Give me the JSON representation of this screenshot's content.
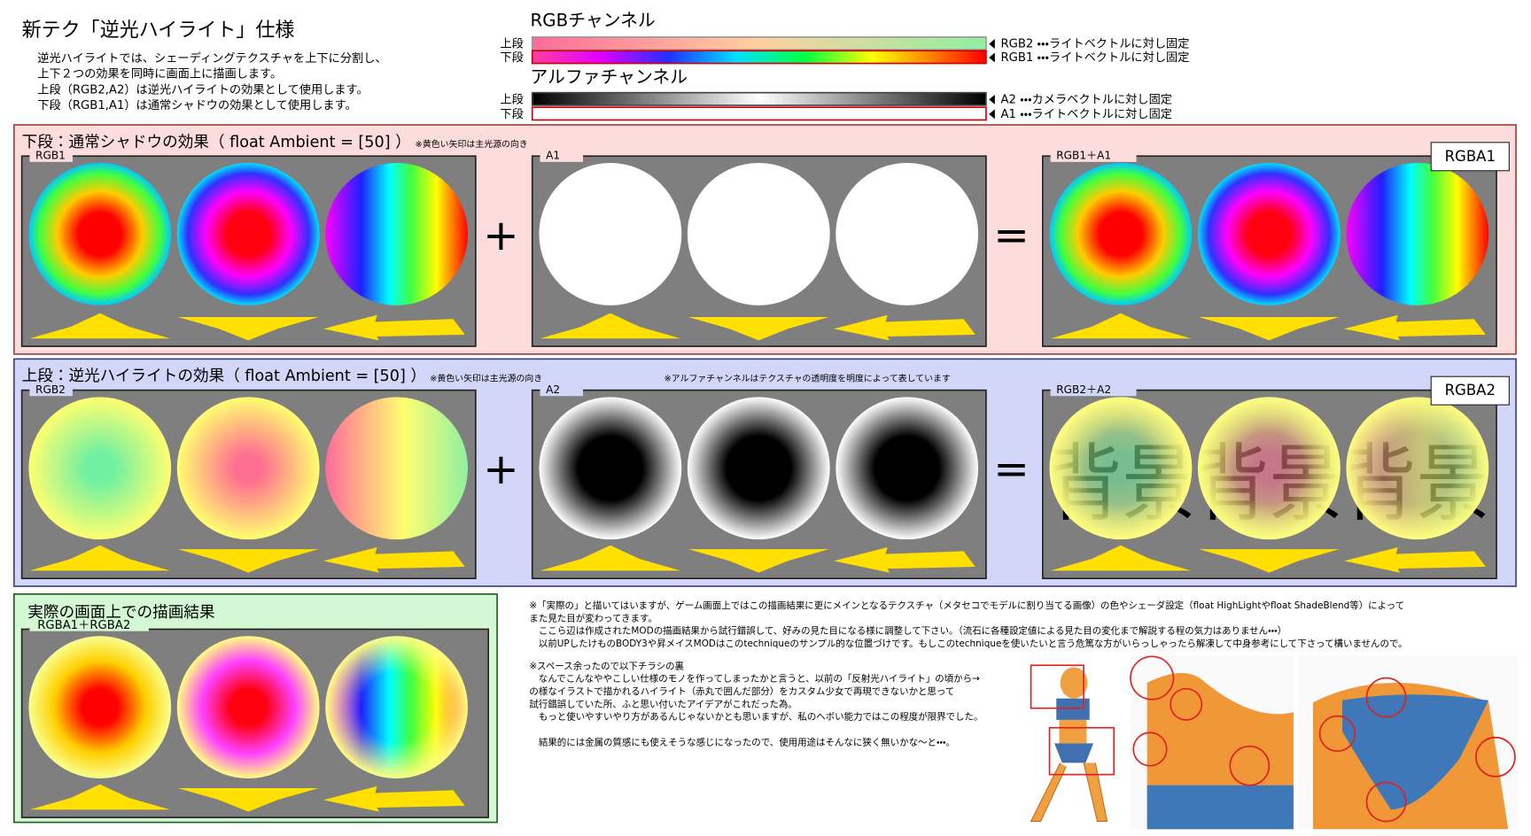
{
  "header": {
    "title": "新テク「逆光ハイライト」仕様",
    "description": [
      "逆光ハイライトでは、シェーディングテクスチャを上下に分割し、",
      "上下２つの効果を同時に画面上に描画します。",
      "上段（RGB2,A2）は逆光ハイライトの効果として使用します。",
      "下段（RGB1,A1）は通常シャドウの効果として使用します。"
    ]
  },
  "rgb_channel": {
    "title": "RGBチャンネル",
    "upper_label": "上段",
    "lower_label": "下段",
    "upper_note": "RGB2 ・・・ライトベクトルに対し固定",
    "lower_note": "RGB1 ・・・ライトベクトルに対し固定"
  },
  "alpha_channel": {
    "title": "アルファチャンネル",
    "upper_label": "上段",
    "lower_label": "下段",
    "upper_note": "A2 ・・・カメラベクトルに対し固定",
    "lower_note": "A1 ・・・ライトベクトルに対し固定"
  },
  "lower_section": {
    "title": "下段：通常シャドウの効果（ float Ambient = [50] ）",
    "note": "※黄色い矢印は主光源の向き",
    "panels": [
      "RGB1",
      "A1",
      "RGB1＋A1"
    ],
    "badge": "RGBA1",
    "plus": "+",
    "equals": "="
  },
  "upper_section": {
    "title": "上段：逆光ハイライトの効果（ float Ambient = [50] ）",
    "note": "※黄色い矢印は主光源の向き",
    "note2": "※アルファチャンネルはテクスチャの透明度を明度によって表しています",
    "panels": [
      "RGB2",
      "A2",
      "RGB2＋A2"
    ],
    "badge": "RGBA2",
    "plus": "+",
    "equals": "=",
    "watermark": "背景背景背景"
  },
  "result_section": {
    "title": "実際の画面上での描画結果",
    "panel": "RGBA1＋RGBA2"
  },
  "notes": {
    "paragraph1": [
      "※「実際の」と描いてはいますが、ゲーム画面上ではこの描画結果に更にメインとなるテクスチャ（メタセコでモデルに割り当てる画像）の色やシェーダ設定（float HighLightやfloat ShadeBlend等）によって",
      "また見た目が変わってきます。",
      "　ここら辺は作成されたMODの描画結果から試行錯誤して、好みの見た目になる様に調整して下さい。（流石に各種設定値による見た目の変化まで解説する程の気力はありません・・・）",
      "　以前UPしたけものBODY3や昇メイスMODはこのtechniqueのサンプル的な位置づけです。もしこのtechniqueを使いたいと言う危篤な方がいらっしゃったら解凍して中身参考にして下さって構いませんので。"
    ],
    "paragraph2": [
      "※スペース余ったので以下チラシの裏",
      "　なんでこんなややこしい仕様のモノを作ってしまったかと言うと、以前の「反射光ハイライト」の頃から→",
      "の様なイラストで描かれるハイライト（赤丸で囲んだ部分）をカスタム少女で再現できないかと思って",
      "試行錯誤していた所、ふと思い付いたアイデアがこれだった為。",
      "　もっと使いやすいやり方があるんじゃないかとも思いますが、私のヘボい能力ではこの程度が限界でした。",
      "　結果的には金属の質感にも使えそうな感じになったので、使用用途はそんなに狭く無いかな～と・・・。"
    ]
  }
}
